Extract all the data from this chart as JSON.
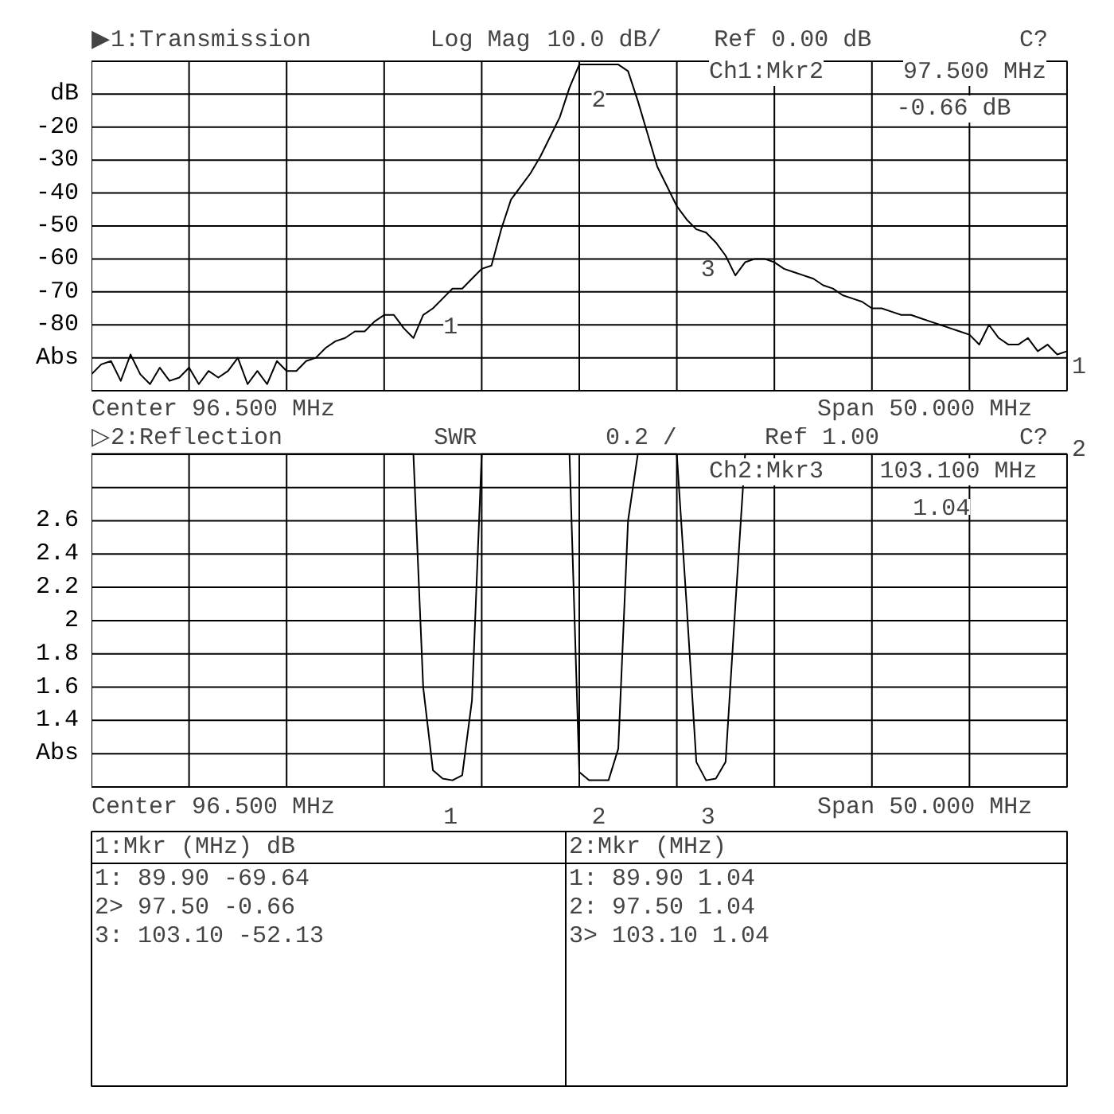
{
  "chart_data": [
    {
      "type": "line",
      "title": "▶1:Transmission",
      "categories": [
        null,
        null,
        null,
        null,
        null,
        null,
        null,
        null,
        null,
        null,
        null,
        null,
        null,
        null,
        null,
        null,
        null,
        null,
        null,
        null,
        null,
        null,
        null,
        null,
        null,
        null,
        null,
        null,
        null,
        null,
        null,
        null,
        null,
        null,
        null,
        null,
        null,
        null,
        null,
        null,
        null,
        null,
        null,
        null,
        null,
        null,
        null,
        null,
        null,
        null,
        null,
        null,
        null,
        null,
        null,
        null,
        null,
        null,
        null,
        null,
        null,
        null,
        null,
        null,
        null,
        null,
        null,
        null,
        null,
        null,
        null,
        null,
        null,
        null,
        null,
        null,
        null,
        null,
        null,
        null,
        null,
        null,
        null,
        null,
        null,
        null,
        null,
        null,
        null,
        null,
        null,
        null,
        null,
        null,
        null,
        null,
        null,
        null,
        null,
        null,
        null
      ],
      "ylim": [
        -100,
        0
      ],
      "yticks": [
        {
          "value": -100,
          "label": null
        },
        {
          "value": -90,
          "label": "Abs"
        },
        -80,
        -70,
        -60,
        -50,
        -40,
        -30,
        -20,
        {
          "value": -10,
          "label": "dB"
        },
        {
          "value": 0,
          "label": null
        }
      ],
      "tick_labels": "y",
      "grid": true,
      "series": [
        {
          "color": "#000000",
          "values": [
            -95,
            -92,
            -91,
            -97,
            -89,
            -95,
            -98,
            -93,
            -97,
            -96,
            -93,
            -98,
            -94,
            -96,
            -94,
            -90,
            -98,
            -94,
            -98,
            -91,
            -94,
            -94,
            -91,
            -90,
            -87,
            -85,
            -84,
            -82,
            -82,
            -79,
            -77,
            -77,
            -81,
            -84,
            -77,
            -75,
            -72,
            -69,
            -69,
            -66,
            -63,
            -62,
            -51,
            -42,
            -38,
            -34,
            -29,
            -23,
            -17,
            -8,
            -1,
            -1,
            -1,
            -1,
            -1,
            -3,
            -12,
            -22,
            -32,
            -38,
            -44,
            -48,
            -51,
            -52,
            -55,
            -59,
            -65,
            -61,
            -60,
            -60,
            -61,
            -63,
            -64,
            -65,
            -66,
            -68,
            -69,
            -71,
            -72,
            -73,
            -75,
            -75,
            -76,
            -77,
            -77,
            -78,
            -79,
            -80,
            -81,
            -82,
            -83,
            -86,
            -80,
            -84,
            -86,
            -86,
            -84,
            -88,
            -86,
            -89,
            -88
          ]
        }
      ],
      "annotations": [
        "Log Mag",
        "10.0 dB/",
        "Ref    0.00 dB",
        "C?",
        "Ch1:Mkr2",
        "97.500 MHz",
        "-0.66 dB",
        "Center 96.500 MHz",
        "Span 50.000 MHz",
        "1",
        {
          "text": "1",
          "y": -69.64
        },
        {
          "text": "2",
          "y": -0.66
        },
        {
          "text": "3",
          "y": -52.13
        }
      ]
    },
    {
      "type": "line",
      "title": "▷2:Reflection",
      "categories": [
        null,
        null,
        null,
        null,
        null,
        null,
        null,
        null,
        null,
        null,
        null,
        null,
        null,
        null,
        null,
        null,
        null,
        null,
        null,
        null,
        null,
        null,
        null,
        null,
        null,
        null,
        null,
        null,
        null,
        null,
        null,
        null,
        null,
        null,
        null,
        null,
        null,
        null,
        null,
        null,
        null,
        null,
        null,
        null,
        null,
        null,
        null,
        null,
        null,
        null,
        null,
        null,
        null,
        null,
        null,
        null,
        null,
        null,
        null,
        null,
        null,
        null,
        null,
        null,
        null,
        null,
        null,
        null,
        null,
        null,
        null,
        null,
        null,
        null,
        null,
        null,
        null,
        null,
        null,
        null,
        null,
        null,
        null,
        null,
        null,
        null,
        null,
        null,
        null,
        null,
        null,
        null,
        null,
        null,
        null,
        null,
        null,
        null,
        null,
        null,
        null
      ],
      "ylim": [
        1,
        3
      ],
      "yticks": [
        {
          "value": 1,
          "label": null
        },
        {
          "value": 1.2,
          "label": "Abs"
        },
        1.4,
        1.6,
        1.8,
        2,
        2.2,
        2.4,
        2.6,
        {
          "value": 2.8,
          "label": null
        },
        {
          "value": 3,
          "label": null
        }
      ],
      "tick_labels": "y",
      "grid": true,
      "series": [
        {
          "color": "#000000",
          "values": [
            3,
            3,
            3,
            3,
            3,
            3,
            3,
            3,
            3,
            3,
            3,
            3,
            3,
            3,
            3,
            3,
            3,
            3,
            3,
            3,
            3,
            3,
            3,
            3,
            3,
            3,
            3,
            3,
            3,
            3,
            3,
            3,
            3,
            3,
            1.6,
            1.1,
            1.05,
            1.04,
            1.07,
            1.52,
            3,
            3,
            3,
            3,
            3,
            3,
            3,
            3,
            3,
            3,
            1.09,
            1.04,
            1.04,
            1.04,
            1.23,
            2.6,
            3,
            3,
            3,
            3,
            3,
            2.1,
            1.15,
            1.04,
            1.05,
            1.15,
            2.09,
            3,
            3,
            3,
            3,
            3,
            3,
            3,
            3,
            3,
            3,
            3,
            3,
            3,
            3,
            3,
            3,
            3,
            3,
            3,
            3,
            3,
            3,
            3,
            3,
            3,
            3,
            3,
            3,
            3,
            3,
            3,
            3,
            3,
            3
          ]
        }
      ],
      "annotations": [
        "SWR",
        "0.2 /",
        "Ref  1.00",
        "C?",
        "Ch2:Mkr3",
        "103.100 MHz",
        "1.04",
        "Center 96.500 MHz",
        "Span 50.000 MHz",
        "2",
        "1:Mkr (MHz)     dB",
        "1:    89.90    -69.64",
        "2>    97.50     -0.66",
        "3:   103.10    -52.13",
        "2:Mkr (MHz)",
        "1:    89.90       1.04",
        "2:    97.50       1.04",
        "3>   103.10       1.04",
        {
          "text": "1",
          "y": 1.04
        },
        {
          "text": "2",
          "y": 1.04
        },
        {
          "text": "3",
          "y": 1.04
        }
      ]
    }
  ]
}
